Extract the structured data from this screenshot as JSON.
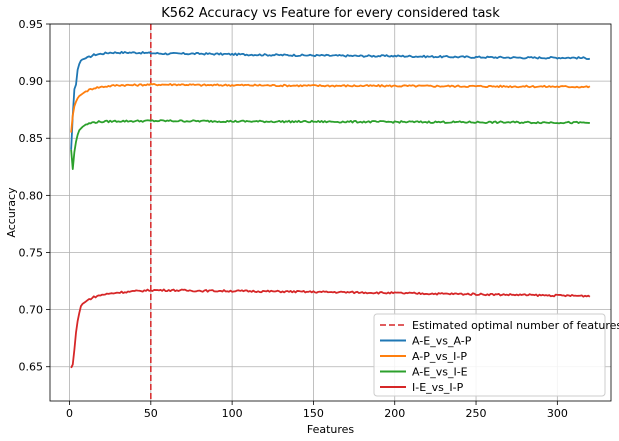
{
  "chart_data": {
    "type": "line",
    "title": "K562 Accuracy vs Feature for every considered task",
    "xlabel": "Features",
    "ylabel": "Accuracy",
    "xlim": [
      -12,
      333
    ],
    "ylim": [
      0.62,
      0.95
    ],
    "xticks": [
      0,
      50,
      100,
      150,
      200,
      250,
      300
    ],
    "yticks": [
      0.65,
      0.7,
      0.75,
      0.8,
      0.85,
      0.9,
      0.95
    ],
    "ytick_labels": [
      "0.65",
      "0.70",
      "0.75",
      "0.80",
      "0.85",
      "0.90",
      "0.95"
    ],
    "grid": true,
    "legend_position": "lower-right",
    "vline": {
      "x": 50,
      "label": "Estimated optimal number of features",
      "color": "#d62728",
      "style": "dashed"
    },
    "series": [
      {
        "name": "A-E_vs_A-P",
        "color": "#1f77b4",
        "points": [
          [
            1,
            0.84
          ],
          [
            2,
            0.87
          ],
          [
            3,
            0.893
          ],
          [
            4,
            0.897
          ],
          [
            5,
            0.91
          ],
          [
            6,
            0.915
          ],
          [
            7,
            0.918
          ],
          [
            8,
            0.919
          ],
          [
            10,
            0.92
          ],
          [
            12,
            0.921
          ],
          [
            15,
            0.923
          ],
          [
            20,
            0.924
          ],
          [
            25,
            0.925
          ],
          [
            30,
            0.925
          ],
          [
            40,
            0.925
          ],
          [
            50,
            0.9245
          ],
          [
            60,
            0.924
          ],
          [
            80,
            0.924
          ],
          [
            100,
            0.9235
          ],
          [
            120,
            0.923
          ],
          [
            150,
            0.9225
          ],
          [
            180,
            0.922
          ],
          [
            200,
            0.922
          ],
          [
            220,
            0.9215
          ],
          [
            250,
            0.921
          ],
          [
            280,
            0.9205
          ],
          [
            300,
            0.9205
          ],
          [
            310,
            0.9205
          ],
          [
            320,
            0.92
          ]
        ]
      },
      {
        "name": "A-P_vs_I-P",
        "color": "#ff7f0e",
        "points": [
          [
            1,
            0.855
          ],
          [
            2,
            0.87
          ],
          [
            3,
            0.878
          ],
          [
            4,
            0.882
          ],
          [
            5,
            0.885
          ],
          [
            6,
            0.887
          ],
          [
            8,
            0.889
          ],
          [
            10,
            0.891
          ],
          [
            15,
            0.894
          ],
          [
            20,
            0.895
          ],
          [
            30,
            0.8965
          ],
          [
            40,
            0.8965
          ],
          [
            50,
            0.897
          ],
          [
            60,
            0.897
          ],
          [
            70,
            0.897
          ],
          [
            80,
            0.8965
          ],
          [
            100,
            0.8965
          ],
          [
            150,
            0.896
          ],
          [
            200,
            0.8958
          ],
          [
            250,
            0.8955
          ],
          [
            300,
            0.8952
          ],
          [
            320,
            0.895
          ]
        ]
      },
      {
        "name": "A-E_vs_I-E",
        "color": "#2ca02c",
        "points": [
          [
            1,
            0.84
          ],
          [
            2,
            0.823
          ],
          [
            3,
            0.838
          ],
          [
            4,
            0.847
          ],
          [
            5,
            0.853
          ],
          [
            6,
            0.857
          ],
          [
            8,
            0.86
          ],
          [
            10,
            0.862
          ],
          [
            15,
            0.864
          ],
          [
            20,
            0.8645
          ],
          [
            30,
            0.865
          ],
          [
            40,
            0.865
          ],
          [
            50,
            0.8652
          ],
          [
            60,
            0.8652
          ],
          [
            80,
            0.865
          ],
          [
            100,
            0.8648
          ],
          [
            150,
            0.8645
          ],
          [
            200,
            0.8643
          ],
          [
            250,
            0.864
          ],
          [
            300,
            0.8638
          ],
          [
            320,
            0.8635
          ]
        ]
      },
      {
        "name": "I-E_vs_I-P",
        "color": "#d62728",
        "points": [
          [
            1,
            0.649
          ],
          [
            2,
            0.652
          ],
          [
            3,
            0.665
          ],
          [
            4,
            0.68
          ],
          [
            5,
            0.69
          ],
          [
            6,
            0.697
          ],
          [
            7,
            0.703
          ],
          [
            8,
            0.705
          ],
          [
            10,
            0.707
          ],
          [
            12,
            0.709
          ],
          [
            15,
            0.711
          ],
          [
            20,
            0.713
          ],
          [
            25,
            0.714
          ],
          [
            30,
            0.715
          ],
          [
            40,
            0.716
          ],
          [
            50,
            0.717
          ],
          [
            60,
            0.717
          ],
          [
            70,
            0.7168
          ],
          [
            80,
            0.7165
          ],
          [
            100,
            0.7163
          ],
          [
            120,
            0.716
          ],
          [
            150,
            0.7155
          ],
          [
            180,
            0.715
          ],
          [
            200,
            0.7145
          ],
          [
            220,
            0.714
          ],
          [
            250,
            0.7135
          ],
          [
            280,
            0.7128
          ],
          [
            300,
            0.7123
          ],
          [
            320,
            0.712
          ]
        ]
      }
    ]
  }
}
